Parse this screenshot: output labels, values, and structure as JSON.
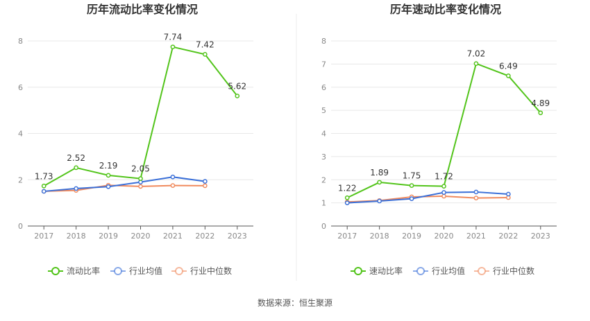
{
  "colors": {
    "series_main": "#52c41a",
    "series_avg": "#3a6fd8",
    "series_median": "#f08a5d",
    "grid": "#e8e8e8",
    "axis": "#555555",
    "divider": "#eeeeee"
  },
  "source": "数据来源：恒生聚源",
  "chart_data": [
    {
      "type": "line",
      "title": "历年流动比率变化情况",
      "categories": [
        "2017",
        "2018",
        "2019",
        "2020",
        "2021",
        "2022",
        "2023"
      ],
      "ylim": [
        0,
        8
      ],
      "yticks": [
        0,
        2,
        4,
        6,
        8
      ],
      "series": [
        {
          "name": "流动比率",
          "values": [
            1.73,
            2.52,
            2.19,
            2.05,
            7.74,
            7.42,
            5.62
          ],
          "labels": [
            "1.73",
            "2.52",
            "2.19",
            "2.05",
            "7.74",
            "7.42",
            "5.62"
          ],
          "color": "#52c41a"
        },
        {
          "name": "行业均值",
          "values": [
            1.5,
            1.62,
            1.7,
            1.9,
            2.12,
            1.93,
            null
          ],
          "color": "#3a6fd8"
        },
        {
          "name": "行业中位数",
          "values": [
            1.5,
            1.54,
            1.76,
            1.71,
            1.75,
            1.74,
            null
          ],
          "color": "#f08a5d"
        }
      ],
      "legend": "bottom"
    },
    {
      "type": "line",
      "title": "历年速动比率变化情况",
      "categories": [
        "2017",
        "2018",
        "2019",
        "2020",
        "2021",
        "2022",
        "2023"
      ],
      "ylim": [
        0,
        8
      ],
      "yticks": [
        0,
        1,
        2,
        3,
        4,
        5,
        6,
        7,
        8
      ],
      "series": [
        {
          "name": "速动比率",
          "values": [
            1.22,
            1.89,
            1.75,
            1.72,
            7.02,
            6.49,
            4.89
          ],
          "labels": [
            "1.22",
            "1.89",
            "1.75",
            "1.72",
            "7.02",
            "6.49",
            "4.89"
          ],
          "color": "#52c41a"
        },
        {
          "name": "行业均值",
          "values": [
            1.0,
            1.08,
            1.18,
            1.45,
            1.47,
            1.38,
            null
          ],
          "color": "#3a6fd8"
        },
        {
          "name": "行业中位数",
          "values": [
            1.04,
            1.1,
            1.26,
            1.29,
            1.21,
            1.23,
            null
          ],
          "color": "#f08a5d"
        }
      ],
      "legend": "bottom"
    }
  ]
}
